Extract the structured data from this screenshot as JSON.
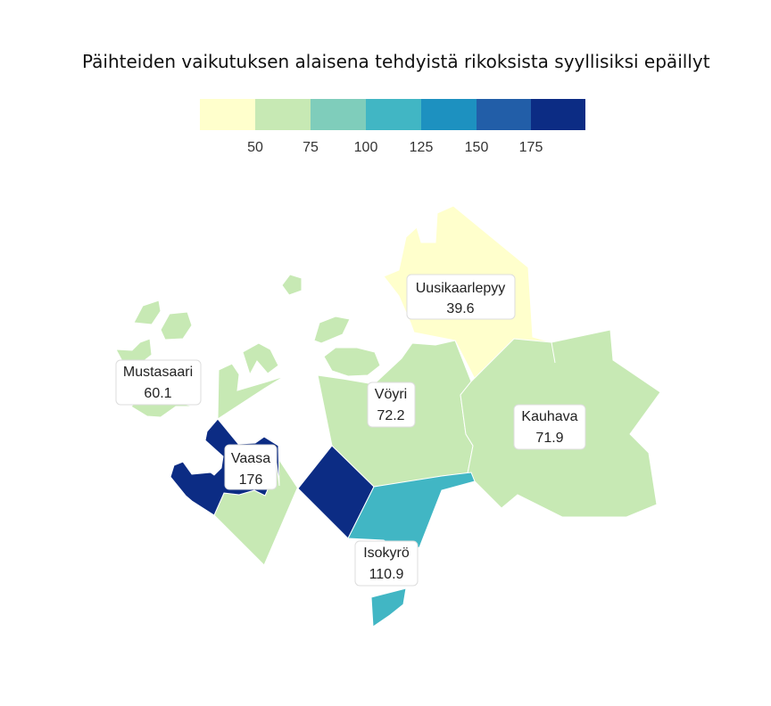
{
  "title": "Päihteiden vaikutuksen alaisena tehdyistä rikoksista syyllisiksi epäillyt",
  "legend": {
    "colors": [
      "#ffffcc",
      "#c7e9b4",
      "#7fcdbb",
      "#41b6c4",
      "#1d91c0",
      "#225ea8",
      "#0c2c84"
    ],
    "ticks": [
      "50",
      "75",
      "100",
      "125",
      "150",
      "175"
    ]
  },
  "regions": [
    {
      "name": "Uusikaarlepyy",
      "value": "39.6",
      "color": "#ffffcc"
    },
    {
      "name": "Mustasaari",
      "value": "60.1",
      "color": "#c7e9b4"
    },
    {
      "name": "Vöyri",
      "value": "72.2",
      "color": "#c7e9b4"
    },
    {
      "name": "Kauhava",
      "value": "71.9",
      "color": "#c7e9b4"
    },
    {
      "name": "Vaasa",
      "value": "176",
      "color": "#0c2c84"
    },
    {
      "name": "Isokyrö",
      "value": "110.9",
      "color": "#41b6c4"
    }
  ]
}
